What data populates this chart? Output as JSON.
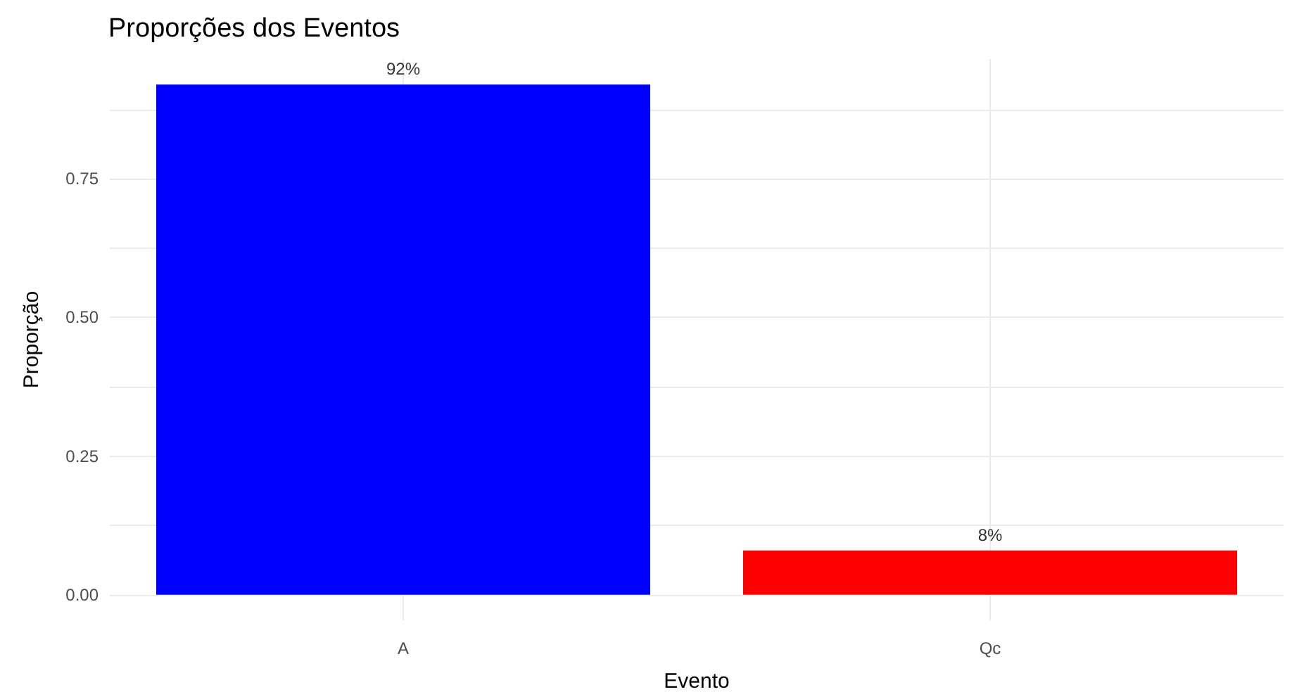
{
  "chart_data": {
    "type": "bar",
    "title": "Proporções dos Eventos",
    "xlabel": "Evento",
    "ylabel": "Proporção",
    "categories": [
      "A",
      "Qc"
    ],
    "values": [
      0.92,
      0.08
    ],
    "colors": [
      "#0000ff",
      "#ff0000"
    ],
    "value_labels": [
      "92%",
      "8%"
    ],
    "ylim": [
      -0.046,
      0.966
    ],
    "yticks": [
      {
        "value": 0,
        "label": "0.00"
      },
      {
        "value": 0.125,
        "label": null
      },
      {
        "value": 0.25,
        "label": "0.25"
      },
      {
        "value": 0.375,
        "label": null
      },
      {
        "value": 0.5,
        "label": "0.50"
      },
      {
        "value": 0.625,
        "label": null
      },
      {
        "value": 0.75,
        "label": "0.75"
      },
      {
        "value": 0.875,
        "label": null
      }
    ],
    "grid": true
  }
}
